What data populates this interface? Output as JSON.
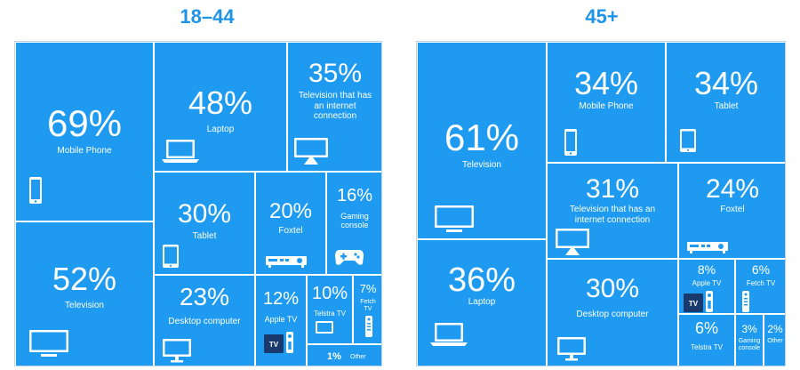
{
  "colors": {
    "tile": "#1e9bf0",
    "title": "#1f94e6",
    "text": "#ffffff"
  },
  "chart_data": [
    {
      "type": "treemap",
      "title": "18–44",
      "unit": "%",
      "items": [
        {
          "label": "Mobile Phone",
          "value": 69,
          "display": "69%",
          "icon": "mobile-phone-icon"
        },
        {
          "label": "Television",
          "value": 52,
          "display": "52%",
          "icon": "television-icon"
        },
        {
          "label": "Laptop",
          "value": 48,
          "display": "48%",
          "icon": "laptop-icon"
        },
        {
          "label": "Television that has an internet connection",
          "value": 35,
          "display": "35%",
          "icon": "smart-tv-icon"
        },
        {
          "label": "Tablet",
          "value": 30,
          "display": "30%",
          "icon": "tablet-icon"
        },
        {
          "label": "Foxtel",
          "value": 20,
          "display": "20%",
          "icon": "set-top-box-icon"
        },
        {
          "label": "Gaming console",
          "value": 16,
          "display": "16%",
          "icon": "gamepad-icon"
        },
        {
          "label": "Desktop computer",
          "value": 23,
          "display": "23%",
          "icon": "monitor-icon"
        },
        {
          "label": "Apple TV",
          "value": 12,
          "display": "12%",
          "icon": "apple-tv-icon"
        },
        {
          "label": "Telstra TV",
          "value": 10,
          "display": "10%",
          "icon": "telstra-tv-icon"
        },
        {
          "label": "Fetch TV",
          "value": 7,
          "display": "7%",
          "icon": "remote-icon"
        },
        {
          "label": "Other",
          "value": 1,
          "display": "1%",
          "icon": ""
        }
      ]
    },
    {
      "type": "treemap",
      "title": "45+",
      "unit": "%",
      "items": [
        {
          "label": "Television",
          "value": 61,
          "display": "61%",
          "icon": "television-icon"
        },
        {
          "label": "Laptop",
          "value": 36,
          "display": "36%",
          "icon": "laptop-icon"
        },
        {
          "label": "Mobile Phone",
          "value": 34,
          "display": "34%",
          "icon": "mobile-phone-icon"
        },
        {
          "label": "Tablet",
          "value": 34,
          "display": "34%",
          "icon": "tablet-icon"
        },
        {
          "label": "Television that has an internet connection",
          "value": 31,
          "display": "31%",
          "icon": "smart-tv-icon"
        },
        {
          "label": "Foxtel",
          "value": 24,
          "display": "24%",
          "icon": "set-top-box-icon"
        },
        {
          "label": "Desktop computer",
          "value": 30,
          "display": "30%",
          "icon": "monitor-icon"
        },
        {
          "label": "Apple TV",
          "value": 8,
          "display": "8%",
          "icon": "apple-tv-icon"
        },
        {
          "label": "Fetch TV",
          "value": 6,
          "display": "6%",
          "icon": "remote-icon"
        },
        {
          "label": "Telstra TV",
          "value": 6,
          "display": "6%",
          "icon": "telstra-tv-icon"
        },
        {
          "label": "Gaming console",
          "value": 3,
          "display": "3%",
          "icon": ""
        },
        {
          "label": "Other",
          "value": 2,
          "display": "2%",
          "icon": ""
        }
      ]
    }
  ],
  "icon_text": {
    "apple_tv_box": "TV"
  }
}
